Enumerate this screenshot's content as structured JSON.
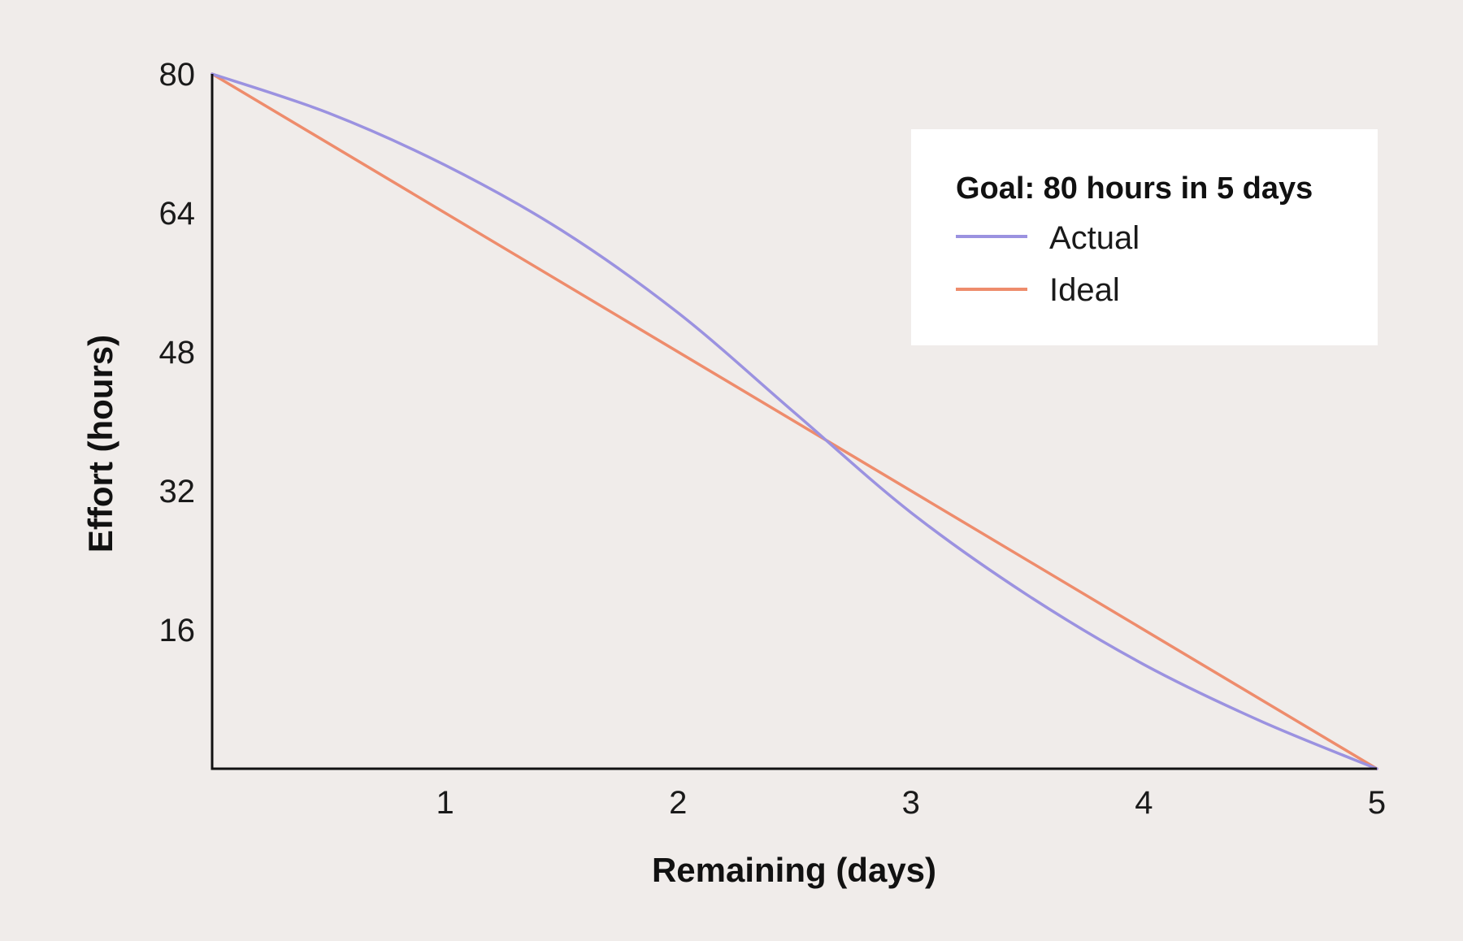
{
  "chart_data": {
    "type": "line",
    "title": "",
    "xlabel": "Remaining (days)",
    "ylabel": "Effort (hours)",
    "xlim": [
      0,
      5
    ],
    "ylim": [
      0,
      80
    ],
    "x_ticks": [
      1,
      2,
      3,
      4,
      5
    ],
    "y_ticks": [
      16,
      32,
      48,
      64,
      80
    ],
    "grid": false,
    "legend": {
      "placement": "top-right",
      "title": "Goal: 80 hours in 5 days"
    },
    "series": [
      {
        "name": "Actual",
        "color": "#9b92e0",
        "x": [
          0,
          0.5,
          1,
          1.5,
          2,
          2.5,
          3,
          3.5,
          4,
          4.5,
          5
        ],
        "y": [
          80,
          75.5,
          69.5,
          62,
          52.5,
          41,
          29.5,
          20,
          12,
          5.5,
          0
        ]
      },
      {
        "name": "Ideal",
        "color": "#ee8c6c",
        "x": [
          0,
          5
        ],
        "y": [
          80,
          0
        ]
      }
    ]
  }
}
